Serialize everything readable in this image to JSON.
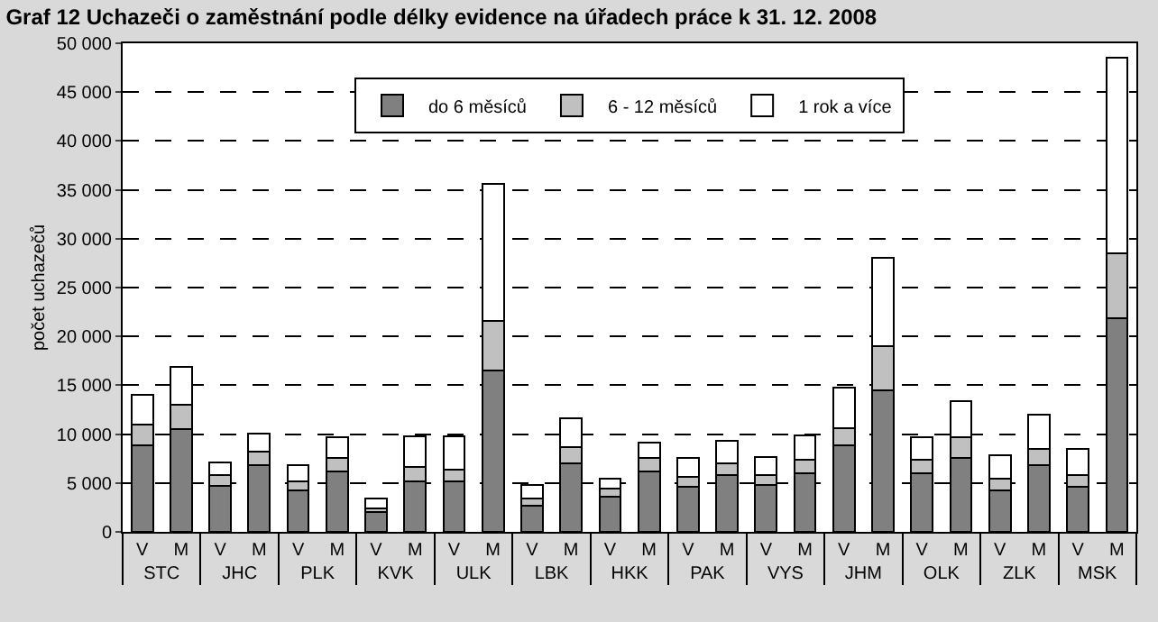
{
  "chart_data": {
    "type": "bar",
    "stacked": true,
    "title": "Graf 12 Uchazeči o zaměstnání podle délky evidence na úřadech práce k 31. 12. 2008",
    "ylabel": "počet uchazečů",
    "categories": [
      "V",
      "M",
      "V",
      "M",
      "V",
      "M",
      "V",
      "M",
      "V",
      "M",
      "V",
      "M",
      "V",
      "M",
      "V",
      "M",
      "V",
      "M",
      "V",
      "M",
      "V",
      "M",
      "V",
      "M",
      "V",
      "M"
    ],
    "annotations": [
      "STC",
      "JHC",
      "PLK",
      "KVK",
      "ULK",
      "LBK",
      "HKK",
      "PAK",
      "VYS",
      "JHM",
      "OLK",
      "ZLK",
      "MSK"
    ],
    "series": [
      {
        "name": "do 6 měsíců",
        "color": "#808080",
        "values": [
          8900,
          10500,
          4700,
          6800,
          4200,
          6200,
          2000,
          5200,
          5200,
          16500,
          2700,
          7000,
          3600,
          6200,
          4600,
          5800,
          4800,
          6000,
          8900,
          14500,
          6000,
          7600,
          4200,
          6800,
          4600,
          21900
        ]
      },
      {
        "name": "6 - 12 měsíců",
        "color": "#c0c0c0",
        "values": [
          2100,
          2500,
          1100,
          1400,
          1000,
          1400,
          400,
          1400,
          1200,
          5100,
          700,
          1700,
          800,
          1400,
          1000,
          1200,
          1000,
          1400,
          1700,
          4500,
          1400,
          2100,
          1200,
          1700,
          1200,
          6600
        ]
      },
      {
        "name": "1 rok a více",
        "color": "#ffffff",
        "values": [
          3000,
          3900,
          1300,
          1900,
          1600,
          2100,
          1000,
          3200,
          3400,
          14000,
          1400,
          2900,
          1000,
          1500,
          2000,
          2300,
          1900,
          2500,
          4200,
          9000,
          2300,
          3700,
          2400,
          3500,
          2700,
          20000
        ]
      }
    ],
    "ylim": [
      0,
      50000
    ],
    "yticks": [
      0,
      {
        "value": 5000,
        "label": "5 000"
      },
      {
        "value": 10000,
        "label": "10 000"
      },
      {
        "value": 15000,
        "label": "15 000"
      },
      {
        "value": 20000,
        "label": "20 000"
      },
      {
        "value": 25000,
        "label": "25 000"
      },
      {
        "value": 30000,
        "label": "30 000"
      },
      {
        "value": 35000,
        "label": "35 000"
      },
      {
        "value": 40000,
        "label": "40 000"
      },
      {
        "value": 45000,
        "label": "45 000"
      },
      {
        "value": 50000,
        "label": "50 000"
      }
    ],
    "grid": "y",
    "legend": "top",
    "line_style": "dashed"
  }
}
